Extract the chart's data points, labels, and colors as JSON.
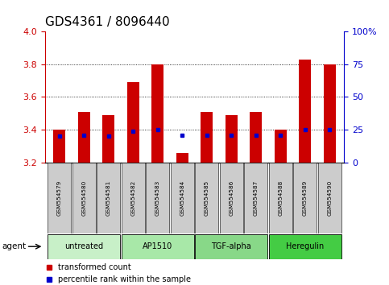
{
  "title": "GDS4361 / 8096440",
  "samples": [
    "GSM554579",
    "GSM554580",
    "GSM554581",
    "GSM554582",
    "GSM554583",
    "GSM554584",
    "GSM554585",
    "GSM554586",
    "GSM554587",
    "GSM554588",
    "GSM554589",
    "GSM554590"
  ],
  "transformed_count": [
    3.4,
    3.51,
    3.49,
    3.69,
    3.8,
    3.26,
    3.51,
    3.49,
    3.51,
    3.4,
    3.83,
    3.8
  ],
  "percentile_rank_pct": [
    20,
    21,
    20,
    24,
    25,
    21,
    21,
    21,
    21,
    21,
    25,
    25
  ],
  "ylim_left": [
    3.2,
    4.0
  ],
  "ylim_right": [
    0,
    100
  ],
  "yticks_left": [
    3.2,
    3.4,
    3.6,
    3.8,
    4.0
  ],
  "yticks_right": [
    0,
    25,
    50,
    75,
    100
  ],
  "groups": [
    {
      "label": "untreated",
      "start": 0,
      "end": 2,
      "color": "#c8f0c8"
    },
    {
      "label": "AP1510",
      "start": 3,
      "end": 5,
      "color": "#a8e8a8"
    },
    {
      "label": "TGF-alpha",
      "start": 6,
      "end": 8,
      "color": "#88d888"
    },
    {
      "label": "Heregulin",
      "start": 9,
      "end": 11,
      "color": "#44cc44"
    }
  ],
  "bar_color": "#cc0000",
  "pct_color": "#0000cc",
  "baseline": 3.2,
  "bar_width": 0.5,
  "left_tick_color": "#cc0000",
  "right_tick_color": "#0000cc",
  "grid_yticks": [
    3.4,
    3.6,
    3.8
  ],
  "sample_box_color": "#cccccc",
  "ytick_fontsize": 8,
  "title_fontsize": 11
}
